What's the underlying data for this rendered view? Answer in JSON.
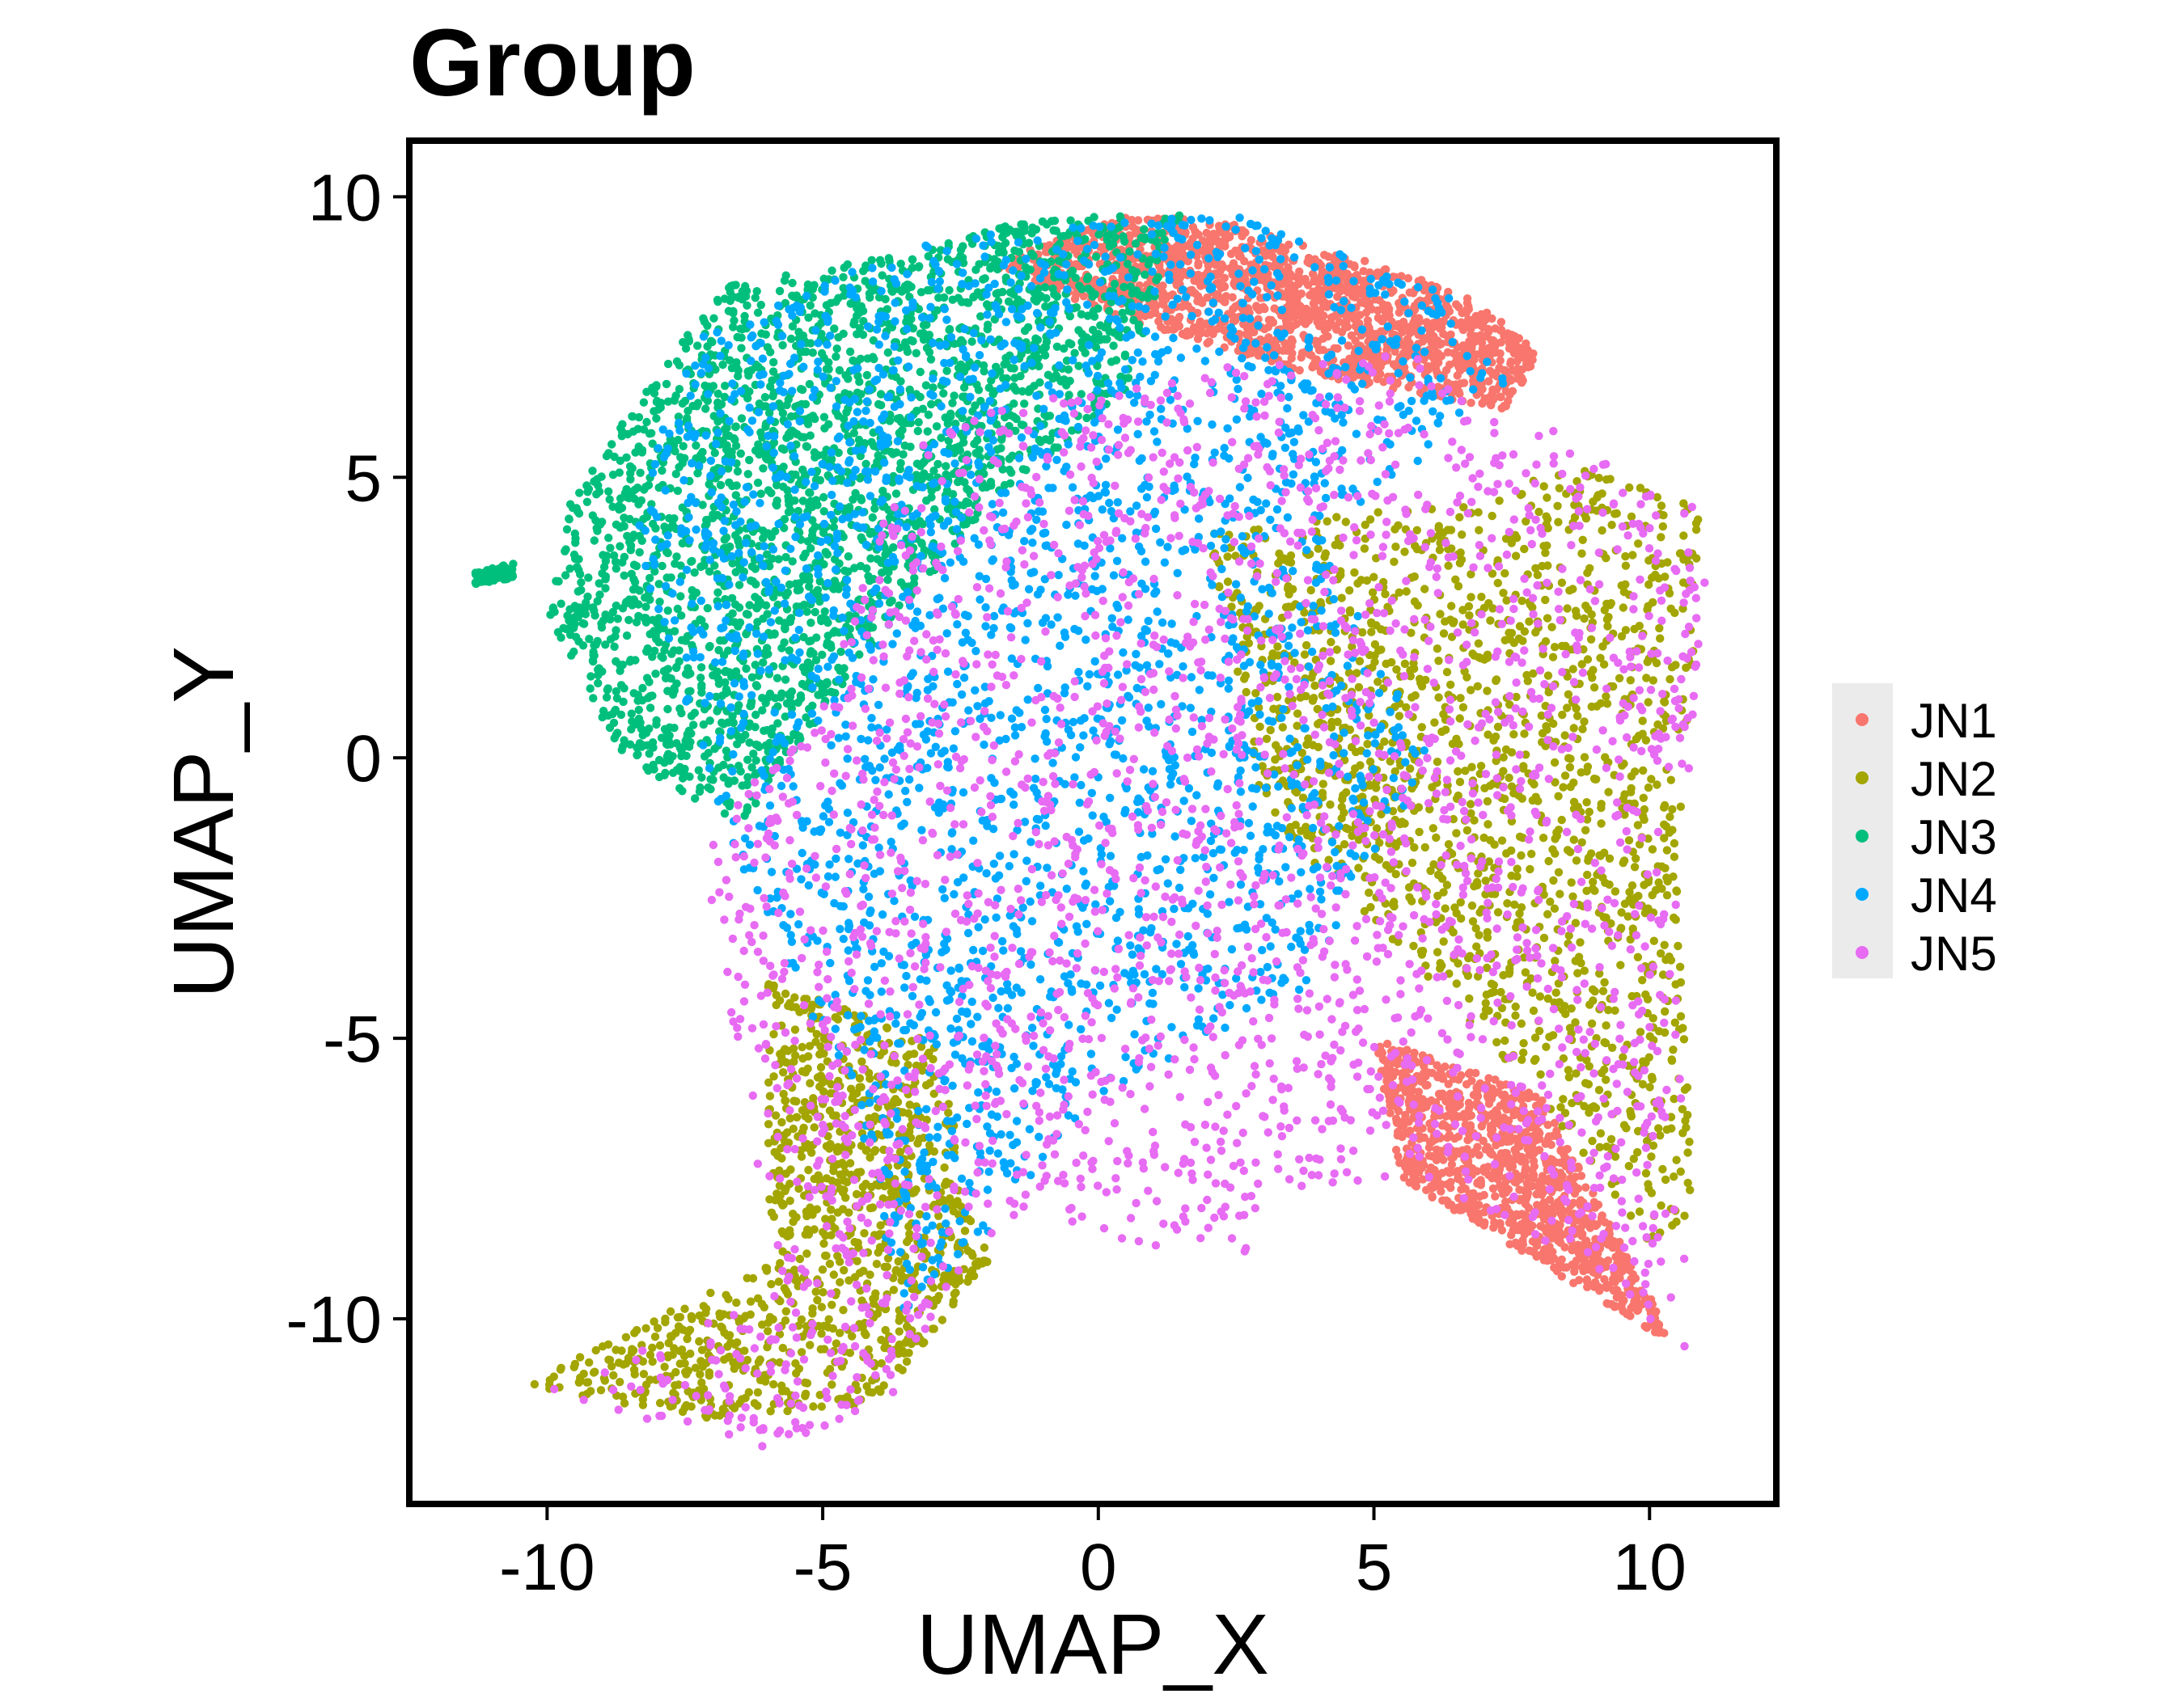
{
  "chart_data": {
    "type": "scatter",
    "title": "Group",
    "xlabel": "UMAP_X",
    "ylabel": "UMAP_Y",
    "xlim": [
      -12.5,
      12.3
    ],
    "ylim": [
      -13.3,
      11.0
    ],
    "x_ticks": [
      -10,
      -5,
      0,
      5,
      10
    ],
    "x_tick_labels": [
      "-10",
      "-5",
      "0",
      "5",
      "10"
    ],
    "y_ticks": [
      -10,
      -5,
      0,
      5,
      10
    ],
    "y_tick_labels": [
      "-10",
      "-5",
      "0",
      "5",
      "10"
    ],
    "grid": false,
    "legend_position": "right",
    "series": [
      {
        "name": "JN1",
        "color": "#F8766D",
        "regions": [
          [
            [
              -2,
              8.8
            ],
            [
              0.6,
              9.7
            ],
            [
              2.5,
              9.5
            ],
            [
              4.8,
              8.9
            ],
            [
              6.8,
              8.2
            ],
            [
              8.0,
              7.2
            ],
            [
              7.4,
              6.2
            ],
            [
              4.0,
              6.8
            ],
            [
              0.5,
              7.8
            ]
          ],
          [
            [
              5,
              -5
            ],
            [
              8,
              -6
            ],
            [
              10.5,
              -10.5
            ],
            [
              8,
              -9
            ],
            [
              5.5,
              -7.5
            ]
          ]
        ],
        "weights": [
          0.6,
          0.4
        ]
      },
      {
        "name": "JN2",
        "color": "#A3A500",
        "regions": [
          [
            [
              2,
              4
            ],
            [
              6,
              4.5
            ],
            [
              9,
              5.2
            ],
            [
              11,
              4.4
            ],
            [
              10.5,
              -2
            ],
            [
              10.8,
              -8
            ],
            [
              10.2,
              -9
            ],
            [
              8,
              -6
            ],
            [
              6,
              -4
            ],
            [
              3,
              -1
            ]
          ],
          [
            [
              -6,
              -4
            ],
            [
              -3,
              -5
            ],
            [
              -2,
              -9
            ],
            [
              -4,
              -11.5
            ],
            [
              -7,
              -11.8
            ],
            [
              -10.5,
              -11.2
            ],
            [
              -6,
              -9
            ]
          ]
        ],
        "weights": [
          0.6,
          0.4
        ]
      },
      {
        "name": "JN3",
        "color": "#00BF7D",
        "regions": [
          [
            [
              -6.8,
              8.4
            ],
            [
              -3.5,
              9.0
            ],
            [
              -1.2,
              9.6
            ],
            [
              1.5,
              9.7
            ],
            [
              0.5,
              6.5
            ],
            [
              -2,
              4.5
            ],
            [
              -4.5,
              1.5
            ],
            [
              -6.5,
              -1.2
            ],
            [
              -8.6,
              0
            ],
            [
              -10,
              2.5
            ],
            [
              -9.6,
              4.5
            ],
            [
              -8.6,
              6.0
            ]
          ],
          [
            [
              -11.3,
              3.3
            ],
            [
              -10.6,
              3.5
            ],
            [
              -10.6,
              3.2
            ],
            [
              -11.3,
              3.1
            ]
          ]
        ],
        "weights": [
          0.97,
          0.03
        ]
      },
      {
        "name": "JN4",
        "color": "#00A9FF",
        "regions": [
          [
            [
              -7.2,
              7.5
            ],
            [
              -3,
              9.3
            ],
            [
              2.5,
              9.7
            ],
            [
              6.5,
              8.2
            ],
            [
              7.5,
              6.5
            ],
            [
              4,
              4
            ],
            [
              6,
              0
            ],
            [
              4,
              -4
            ],
            [
              0,
              -6
            ],
            [
              -2,
              -8.5
            ],
            [
              -3.5,
              -10
            ],
            [
              -4.5,
              -6
            ],
            [
              -6.5,
              -2
            ],
            [
              -7.5,
              1
            ],
            [
              -8.5,
              4
            ],
            [
              -8,
              6
            ]
          ]
        ],
        "weights": [
          1
        ]
      },
      {
        "name": "JN5",
        "color": "#E76BF3",
        "regions": [
          [
            [
              -3,
              6
            ],
            [
              2,
              7
            ],
            [
              5.5,
              7.3
            ],
            [
              8.5,
              5.8
            ],
            [
              11.1,
              4.3
            ],
            [
              10.5,
              -3
            ],
            [
              10.7,
              -10.8
            ],
            [
              9.5,
              -9.5
            ],
            [
              6,
              -7.5
            ],
            [
              3,
              -7.7
            ],
            [
              2.7,
              -8.8
            ],
            [
              1,
              -8.7
            ],
            [
              -1.5,
              -8.2
            ],
            [
              -2.5,
              -9.5
            ],
            [
              -3.5,
              -11.4
            ],
            [
              -6,
              -12.3
            ],
            [
              -10.5,
              -11.4
            ],
            [
              -5.8,
              -9.5
            ],
            [
              -6.5,
              -5.5
            ],
            [
              -7.2,
              -1.5
            ],
            [
              -5,
              1
            ],
            [
              -4,
              4
            ]
          ]
        ],
        "weights": [
          1
        ]
      }
    ]
  },
  "legend": {
    "items": [
      {
        "label": "JN1",
        "color": "#F8766D"
      },
      {
        "label": "JN2",
        "color": "#A3A500"
      },
      {
        "label": "JN3",
        "color": "#00BF7D"
      },
      {
        "label": "JN4",
        "color": "#00A9FF"
      },
      {
        "label": "JN5",
        "color": "#E76BF3"
      }
    ]
  }
}
